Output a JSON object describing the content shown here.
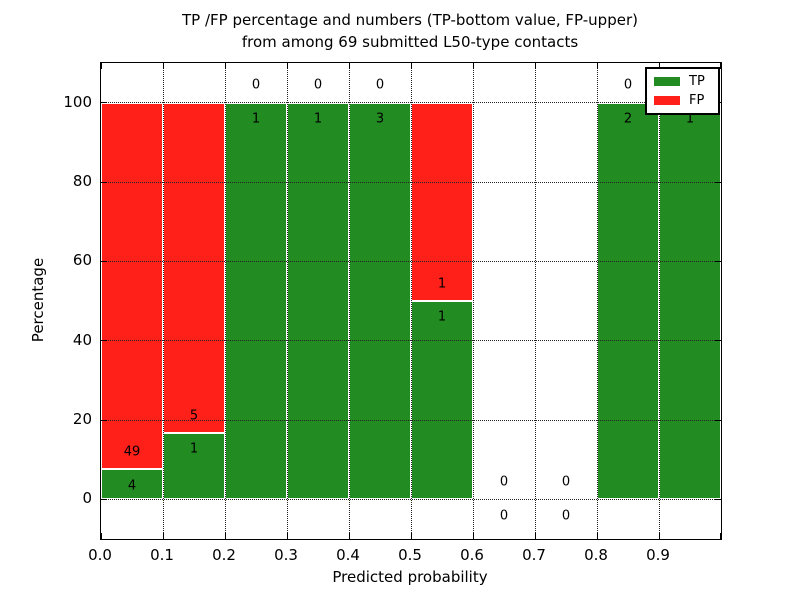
{
  "figure": {
    "title_line1": "TP /FP percentage and numbers (TP-bottom value, FP-upper)",
    "title_line2": "from among 69 submitted L50-type contacts"
  },
  "chart_data": {
    "type": "bar",
    "stacked": true,
    "title": "TP /FP percentage and numbers (TP-bottom value, FP-upper) from among 69 submitted L50-type contacts",
    "xlabel": "Predicted probability",
    "ylabel": "Percentage",
    "xlim": [
      0.0,
      1.0
    ],
    "ylim": [
      -10,
      110
    ],
    "bin_width": 0.1,
    "x_tick_labels": [
      "0.0",
      "0.1",
      "0.2",
      "0.3",
      "0.4",
      "0.5",
      "0.6",
      "0.7",
      "0.8",
      "0.9"
    ],
    "y_tick_values": [
      0,
      20,
      40,
      60,
      80,
      100
    ],
    "grid": true,
    "grid_style": "dotted",
    "value_scale": "percent_of_bin_total",
    "categories": [
      "0.0-0.1",
      "0.1-0.2",
      "0.2-0.3",
      "0.3-0.4",
      "0.4-0.5",
      "0.5-0.6",
      "0.6-0.7",
      "0.7-0.8",
      "0.8-0.9",
      "0.9-1.0"
    ],
    "series": [
      {
        "name": "TP",
        "color": "#228b22",
        "values": [
          4,
          1,
          1,
          1,
          3,
          1,
          0,
          0,
          2,
          1
        ]
      },
      {
        "name": "FP",
        "color": "#ff2019",
        "values": [
          49,
          5,
          0,
          0,
          0,
          1,
          0,
          0,
          0,
          0
        ]
      }
    ],
    "tp_percent_per_bin": [
      7.5,
      16.7,
      100,
      100,
      100,
      50,
      0,
      0,
      100,
      100
    ],
    "bar_value_labels": "FP count above segment boundary, TP count below segment boundary",
    "legend": {
      "position": "upper right",
      "entries": [
        {
          "label": "TP",
          "color": "#228b22"
        },
        {
          "label": "FP",
          "color": "#ff2019"
        }
      ]
    }
  }
}
